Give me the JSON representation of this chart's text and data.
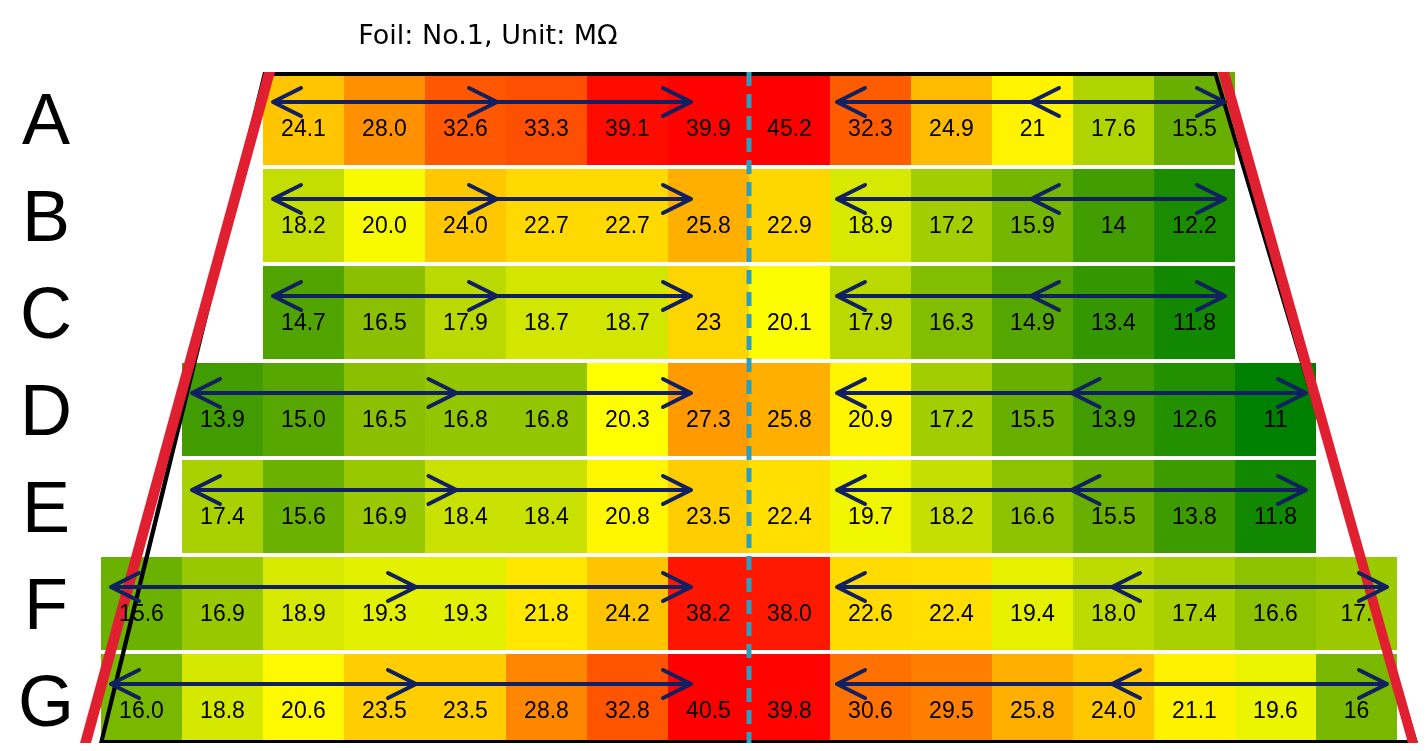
{
  "chart_data": {
    "type": "heatmap",
    "title": "Foil: No.1, Unit: MΩ",
    "categories": [
      null,
      null,
      null,
      null,
      null,
      null,
      null,
      null,
      null,
      null,
      null,
      null,
      null,
      null,
      null,
      null
    ],
    "y_categories": [
      "A",
      "B",
      "C",
      "D",
      "E",
      "F",
      "G"
    ],
    "cells": [
      [
        null,
        null,
        24.1,
        28.0,
        32.6,
        33.3,
        39.1,
        39.9,
        45.2,
        32.3,
        24.9,
        21,
        17.6,
        15.5,
        null,
        null
      ],
      [
        null,
        null,
        18.2,
        20.0,
        24.0,
        22.7,
        22.7,
        25.8,
        22.9,
        18.9,
        17.2,
        15.9,
        14,
        12.2,
        null,
        null
      ],
      [
        null,
        null,
        14.7,
        16.5,
        17.9,
        18.7,
        18.7,
        23,
        20.1,
        17.9,
        16.3,
        14.9,
        13.4,
        11.8,
        null,
        null
      ],
      [
        null,
        13.9,
        15.0,
        16.5,
        16.8,
        16.8,
        20.3,
        27.3,
        25.8,
        20.9,
        17.2,
        15.5,
        13.9,
        12.6,
        11,
        null
      ],
      [
        null,
        17.4,
        15.6,
        16.9,
        18.4,
        18.4,
        20.8,
        23.5,
        22.4,
        19.7,
        18.2,
        16.6,
        15.5,
        13.8,
        11.8,
        null
      ],
      [
        15.6,
        16.9,
        18.9,
        19.3,
        19.3,
        21.8,
        24.2,
        38.2,
        38.0,
        22.6,
        22.4,
        19.4,
        18.0,
        17.4,
        16.6,
        17
      ],
      [
        16.0,
        18.8,
        20.6,
        23.5,
        23.5,
        28.8,
        32.8,
        40.5,
        39.8,
        30.6,
        29.5,
        25.8,
        24.0,
        21.1,
        19.6,
        16
      ]
    ],
    "cell_labels": [
      [
        null,
        null,
        "24.1",
        "28.0",
        "32.6",
        "33.3",
        "39.1",
        "39.9",
        "45.2",
        "32.3",
        "24.9",
        "21",
        "17.6",
        "15.5",
        null,
        null
      ],
      [
        null,
        null,
        "18.2",
        "20.0",
        "24.0",
        "22.7",
        "22.7",
        "25.8",
        "22.9",
        "18.9",
        "17.2",
        "15.9",
        "14",
        "12.2",
        null,
        null
      ],
      [
        null,
        null,
        "14.7",
        "16.5",
        "17.9",
        "18.7",
        "18.7",
        "23",
        "20.1",
        "17.9",
        "16.3",
        "14.9",
        "13.4",
        "11.8",
        null,
        null
      ],
      [
        null,
        "13.9",
        "15.0",
        "16.5",
        "16.8",
        "16.8",
        "20.3",
        "27.3",
        "25.8",
        "20.9",
        "17.2",
        "15.5",
        "13.9",
        "12.6",
        "11",
        null
      ],
      [
        null,
        "17.4",
        "15.6",
        "16.9",
        "18.4",
        "18.4",
        "20.8",
        "23.5",
        "22.4",
        "19.7",
        "18.2",
        "16.6",
        "15.5",
        "13.8",
        "11.8",
        null
      ],
      [
        "15.6",
        "16.9",
        "18.9",
        "19.3",
        "19.3",
        "21.8",
        "24.2",
        "38.2",
        "38.0",
        "22.6",
        "22.4",
        "19.4",
        "18.0",
        "17.4",
        "16.6",
        "17."
      ],
      [
        "16.0",
        "18.8",
        "20.6",
        "23.5",
        "23.5",
        "28.8",
        "32.8",
        "40.5",
        "39.8",
        "30.6",
        "29.5",
        "25.8",
        "24.0",
        "21.1",
        "19.6",
        "16"
      ]
    ]
  }
}
